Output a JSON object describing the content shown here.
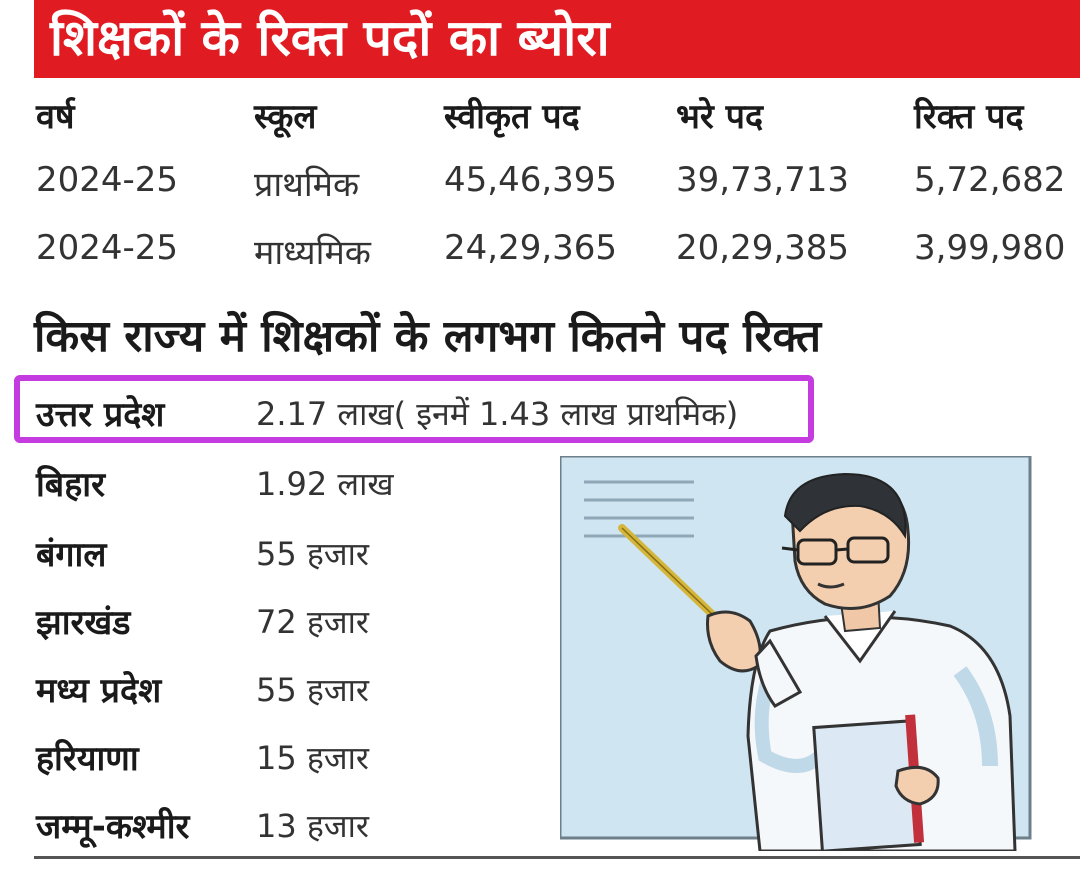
{
  "title": "शिक्षकों के रिक्त पदों का ब्योरा",
  "table": {
    "headers": [
      "वर्ष",
      "स्कूल",
      "स्वीकृत पद",
      "भरे पद",
      "रिक्त पद"
    ],
    "rows": [
      [
        "2024-25",
        "प्राथमिक",
        "45,46,395",
        "39,73,713",
        "5,72,682"
      ],
      [
        "2024-25",
        "माध्यमिक",
        "24,29,365",
        "20,29,385",
        "3,99,980"
      ]
    ]
  },
  "states_heading": "किस राज्य में शिक्षकों के लगभग कितने पद रिक्त",
  "states": [
    {
      "name": "उत्तर प्रदेश",
      "value": "2.17 लाख( इनमें 1.43 लाख प्राथमिक)"
    },
    {
      "name": "बिहार",
      "value": "1.92 लाख"
    },
    {
      "name": "बंगाल",
      "value": "55 हजार"
    },
    {
      "name": "झारखंड",
      "value": "72 हजार"
    },
    {
      "name": "मध्य प्रदेश",
      "value": "55 हजार"
    },
    {
      "name": "हरियाणा",
      "value": "15 हजार"
    },
    {
      "name": "जम्मू-कश्मीर",
      "value": "13 हजार"
    }
  ],
  "colors": {
    "banner": "#e11b22",
    "highlight": "#c43be0",
    "board": "#cfe6f2"
  }
}
